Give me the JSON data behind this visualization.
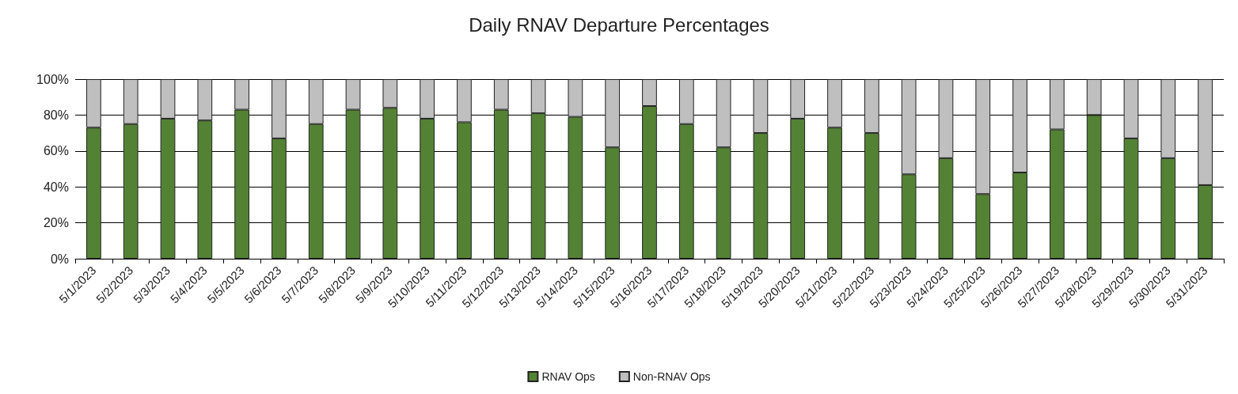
{
  "chart_data": {
    "type": "bar",
    "title": "Daily RNAV Departure Percentages",
    "stacked": true,
    "grid": "y",
    "legend": "bottom",
    "categories": [
      "5/1/2023",
      "5/2/2023",
      "5/3/2023",
      "5/4/2023",
      "5/5/2023",
      "5/6/2023",
      "5/7/2023",
      "5/8/2023",
      "5/9/2023",
      "5/10/2023",
      "5/11/2023",
      "5/12/2023",
      "5/13/2023",
      "5/14/2023",
      "5/15/2023",
      "5/16/2023",
      "5/17/2023",
      "5/18/2023",
      "5/19/2023",
      "5/20/2023",
      "5/21/2023",
      "5/22/2023",
      "5/23/2023",
      "5/24/2023",
      "5/25/2023",
      "5/26/2023",
      "5/27/2023",
      "5/28/2023",
      "5/29/2023",
      "5/30/2023",
      "5/31/2023"
    ],
    "series": [
      {
        "name": "RNAV Ops",
        "color": "#548235",
        "values": [
          73,
          75,
          78,
          77,
          83,
          67,
          75,
          83,
          84,
          78,
          76,
          83,
          81,
          79,
          62,
          85,
          75,
          62,
          70,
          78,
          73,
          70,
          47,
          56,
          36,
          48,
          72,
          80,
          67,
          56,
          41
        ]
      },
      {
        "name": "Non-RNAV Ops",
        "color": "#bfbfbf",
        "values": [
          27,
          25,
          22,
          23,
          17,
          33,
          25,
          17,
          16,
          22,
          24,
          17,
          19,
          21,
          38,
          15,
          25,
          38,
          30,
          22,
          27,
          30,
          53,
          44,
          64,
          52,
          28,
          20,
          33,
          44,
          59
        ]
      }
    ],
    "ylim": [
      0,
      100
    ],
    "yticks": [
      {
        "value": 0,
        "label": "0%"
      },
      {
        "value": 20,
        "label": "20%"
      },
      {
        "value": 40,
        "label": "40%"
      },
      {
        "value": 60,
        "label": "60%"
      },
      {
        "value": 80,
        "label": "80%"
      },
      {
        "value": 100,
        "label": "100%"
      }
    ]
  }
}
